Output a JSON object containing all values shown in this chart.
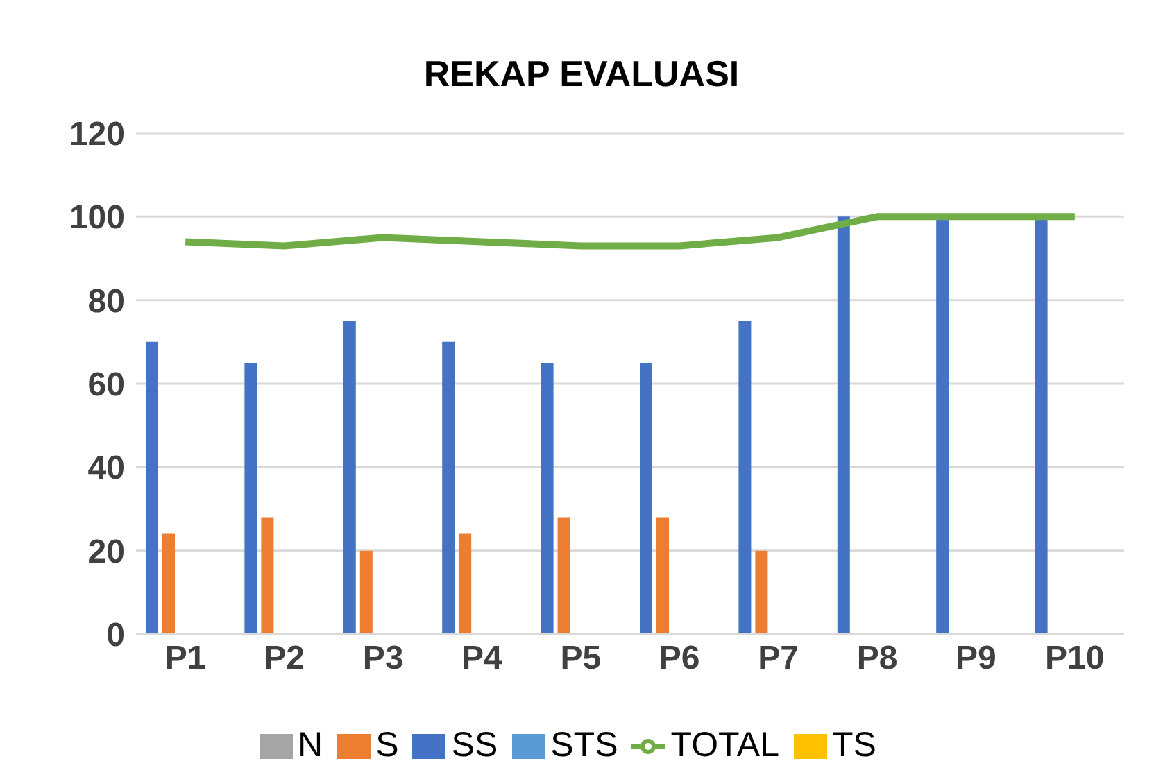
{
  "chart_data": {
    "type": "bar",
    "title": "REKAP EVALUASI",
    "categories": [
      "P1",
      "P2",
      "P3",
      "P4",
      "P5",
      "P6",
      "P7",
      "P8",
      "P9",
      "P10"
    ],
    "series": [
      {
        "name": "SS",
        "color": "#4472c4",
        "values": [
          70,
          65,
          75,
          70,
          65,
          65,
          75,
          100,
          100,
          100
        ]
      },
      {
        "name": "S",
        "color": "#ed7d31",
        "values": [
          24,
          28,
          20,
          24,
          28,
          28,
          20,
          0,
          0,
          0
        ]
      },
      {
        "name": "N",
        "color": "#a5a5a5",
        "values": [
          0,
          0,
          0,
          0,
          0,
          0,
          0,
          0,
          0,
          0
        ]
      },
      {
        "name": "TS",
        "color": "#ffc000",
        "values": [
          0,
          0,
          0,
          0,
          0,
          0,
          0,
          0,
          0,
          0
        ]
      },
      {
        "name": "STS",
        "color": "#5b9bd5",
        "values": [
          0,
          0,
          0,
          0,
          0,
          0,
          0,
          0,
          0,
          0
        ]
      },
      {
        "name": "TOTAL",
        "type": "line",
        "color": "#70ad47",
        "values": [
          94,
          93,
          95,
          94,
          93,
          93,
          95,
          100,
          100,
          100
        ]
      }
    ],
    "ylim": [
      0,
      120
    ],
    "yticks": [
      0,
      20,
      40,
      60,
      80,
      100,
      120
    ],
    "grid": "y",
    "legend": "bottom",
    "marker": "none"
  }
}
